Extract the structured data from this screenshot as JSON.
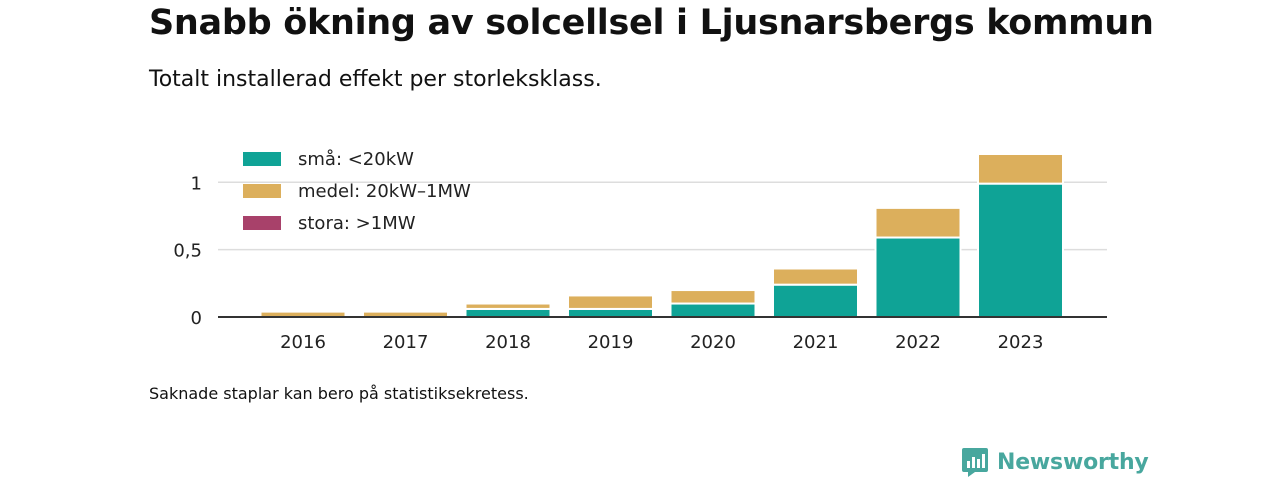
{
  "header": {
    "title": "Snabb ökning av solcellsel i Ljusnarsbergs kommun",
    "subtitle": "Totalt installerad effekt per storleksklass."
  },
  "footer": {
    "note": "Saknade staplar kan bero på statistiksekretess.",
    "brand": "Newsworthy"
  },
  "colors": {
    "small": "#0fa396",
    "medium": "#dcaf5c",
    "large": "#a8416a",
    "grid": "#dddddd",
    "axis": "#333333",
    "brand": "#48a79e"
  },
  "chart_data": {
    "type": "bar",
    "stacked": true,
    "categories": [
      "2016",
      "2017",
      "2018",
      "2019",
      "2020",
      "2021",
      "2022",
      "2023"
    ],
    "series": [
      {
        "name": "små: <20kW",
        "color": "#0fa396",
        "values": [
          0,
          0,
          0.06,
          0.06,
          0.1,
          0.24,
          0.59,
          0.99
        ]
      },
      {
        "name": "medel: 20kW–1MW",
        "color": "#dcaf5c",
        "values": [
          0.04,
          0.04,
          0.04,
          0.1,
          0.1,
          0.12,
          0.22,
          0.22
        ]
      },
      {
        "name": "stora: >1MW",
        "color": "#a8416a",
        "values": [
          0,
          0,
          0,
          0,
          0,
          0,
          0,
          0
        ]
      }
    ],
    "y_ticks": [
      0,
      0.5,
      1
    ],
    "y_tick_labels": [
      "0",
      "0,5",
      "1"
    ],
    "ylim": [
      0,
      1.21
    ],
    "grid": true,
    "legend_position": "top-left"
  }
}
